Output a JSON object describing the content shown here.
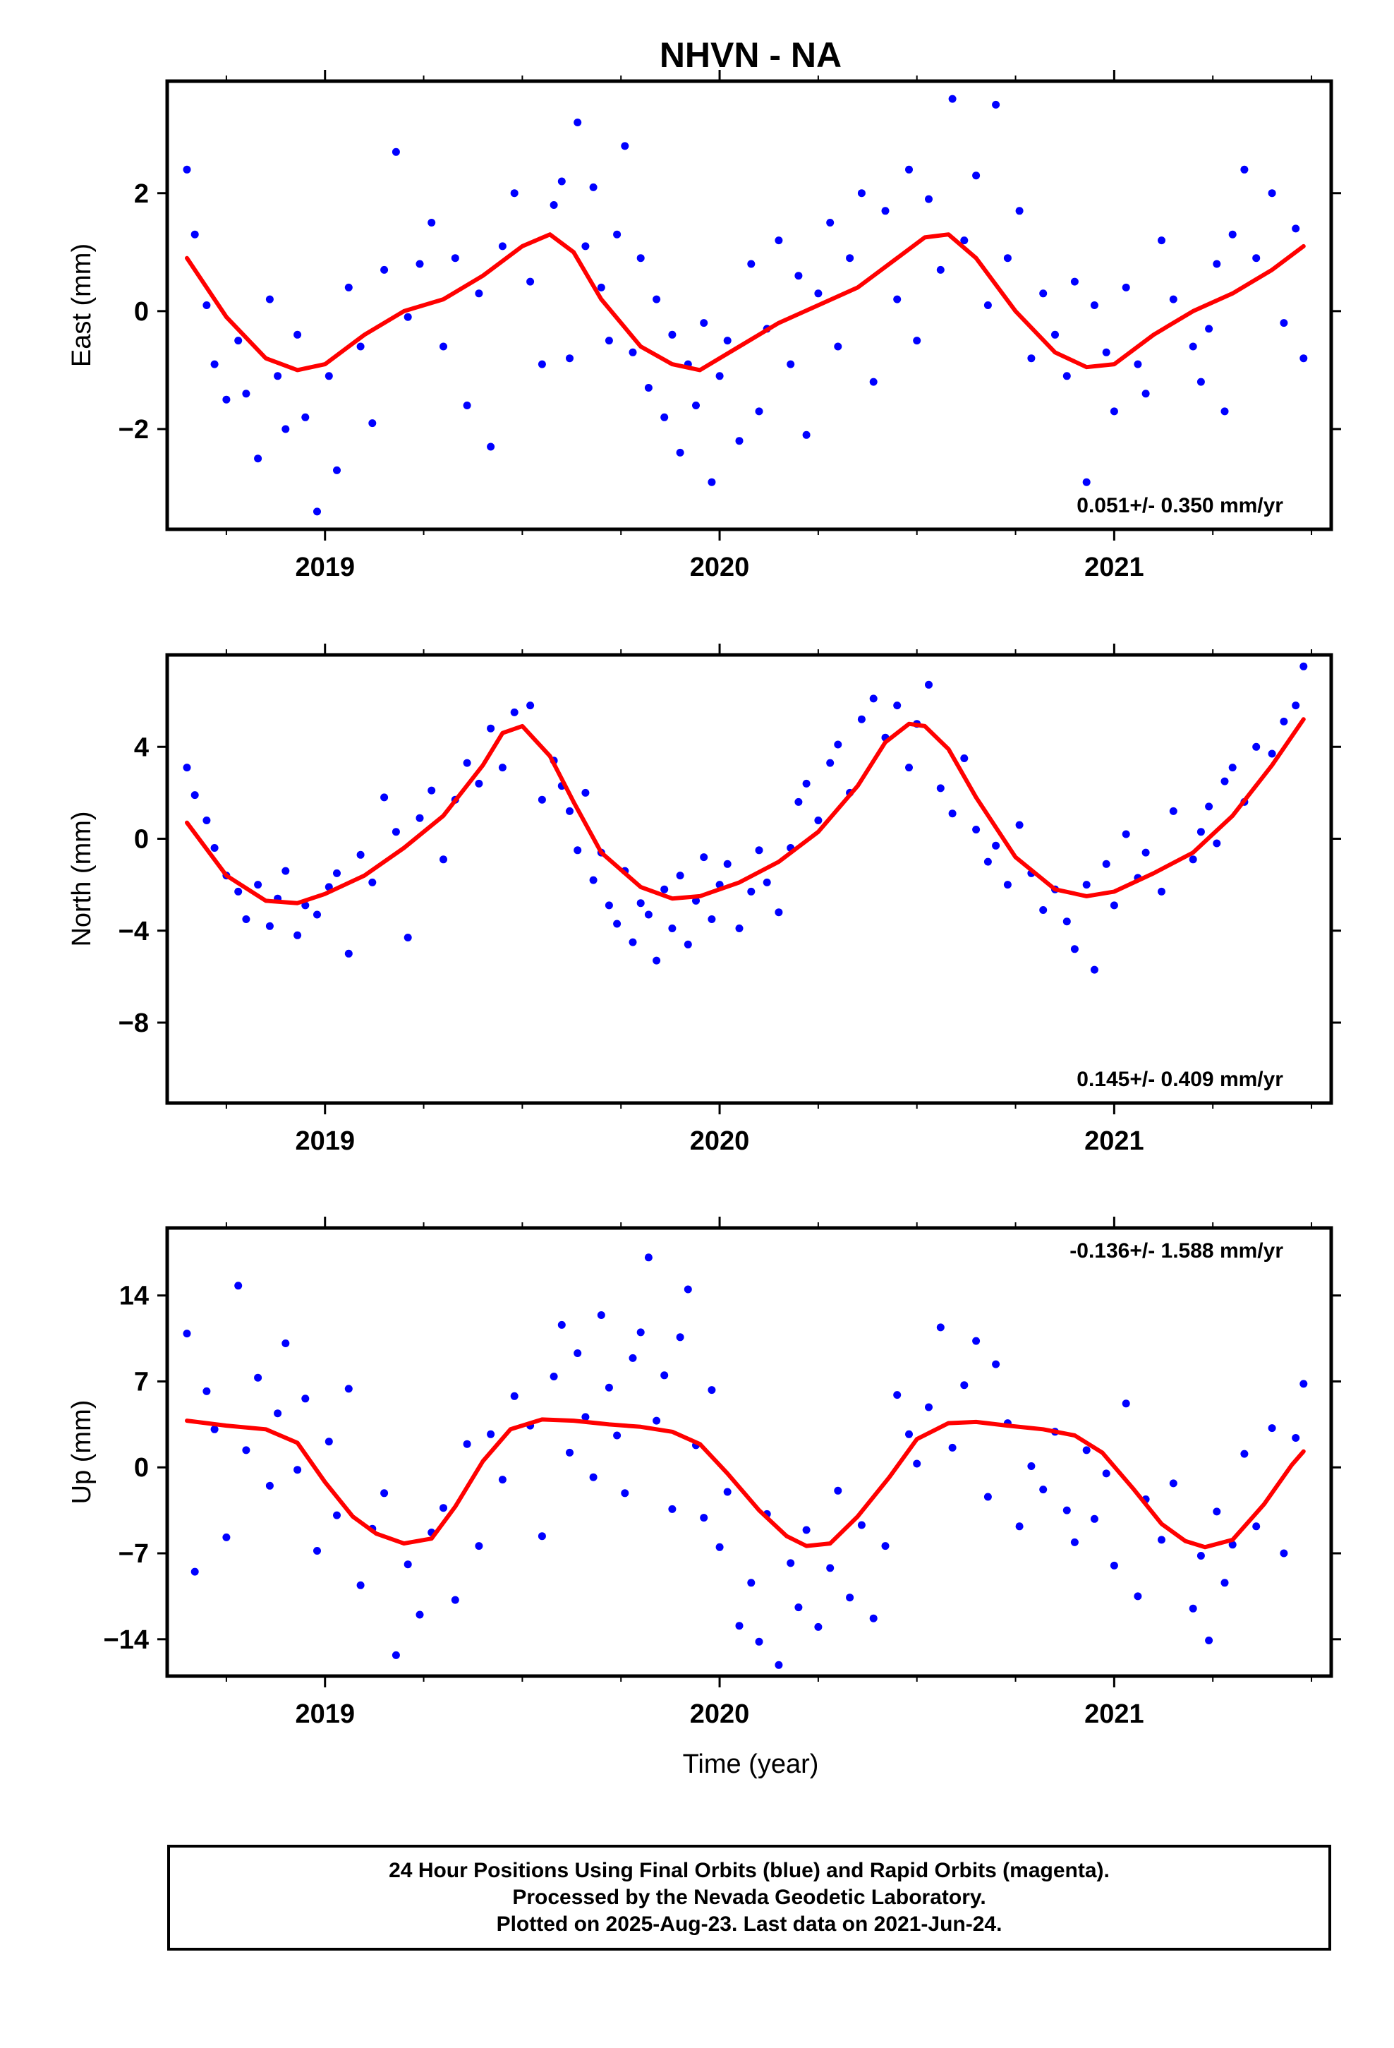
{
  "title": "NHVN - NA",
  "xlabel": "Time (year)",
  "colors": {
    "points": "#0000ff",
    "fit": "#ff0000",
    "frame": "#000000"
  },
  "footer": {
    "line1": "24 Hour Positions Using Final Orbits (blue) and Rapid Orbits (magenta).",
    "line2": "Processed by the Nevada Geodetic Laboratory.",
    "line3": "Plotted on 2025-Aug-23. Last data on 2021-Jun-24."
  },
  "chart_data": [
    {
      "type": "scatter",
      "ylabel": "East (mm)",
      "rate_label": "0.051+/- 0.350 mm/yr",
      "rate_position": "bottom-right",
      "xlim": [
        2018.6,
        2021.55
      ],
      "ylim": [
        -3.7,
        3.9
      ],
      "yticks": [
        -2,
        0,
        2
      ],
      "xticks": [
        2019,
        2020,
        2021
      ],
      "series": [
        {
          "kind": "points",
          "x": [
            2018.65,
            2018.67,
            2018.7,
            2018.72,
            2018.75,
            2018.78,
            2018.8,
            2018.83,
            2018.86,
            2018.88,
            2018.9,
            2018.93,
            2018.95,
            2018.98,
            2019.01,
            2019.03,
            2019.06,
            2019.09,
            2019.12,
            2019.15,
            2019.18,
            2019.21,
            2019.24,
            2019.27,
            2019.3,
            2019.33,
            2019.36,
            2019.39,
            2019.42,
            2019.45,
            2019.48,
            2019.52,
            2019.55,
            2019.58,
            2019.6,
            2019.62,
            2019.64,
            2019.66,
            2019.68,
            2019.7,
            2019.72,
            2019.74,
            2019.76,
            2019.78,
            2019.8,
            2019.82,
            2019.84,
            2019.86,
            2019.88,
            2019.9,
            2019.92,
            2019.94,
            2019.96,
            2019.98,
            2020.0,
            2020.02,
            2020.05,
            2020.08,
            2020.1,
            2020.12,
            2020.15,
            2020.18,
            2020.2,
            2020.22,
            2020.25,
            2020.28,
            2020.3,
            2020.33,
            2020.36,
            2020.39,
            2020.42,
            2020.45,
            2020.48,
            2020.5,
            2020.53,
            2020.56,
            2020.59,
            2020.62,
            2020.65,
            2020.68,
            2020.7,
            2020.73,
            2020.76,
            2020.79,
            2020.82,
            2020.85,
            2020.88,
            2020.9,
            2020.93,
            2020.95,
            2020.98,
            2021.0,
            2021.03,
            2021.06,
            2021.08,
            2021.12,
            2021.15,
            2021.2,
            2021.22,
            2021.24,
            2021.26,
            2021.28,
            2021.3,
            2021.33,
            2021.36,
            2021.4,
            2021.43,
            2021.46,
            2021.48
          ],
          "y": [
            2.4,
            1.3,
            0.1,
            -0.9,
            -1.5,
            -0.5,
            -1.4,
            -2.5,
            0.2,
            -1.1,
            -2.0,
            -0.4,
            -1.8,
            -3.4,
            -1.1,
            -2.7,
            0.4,
            -0.6,
            -1.9,
            0.7,
            2.7,
            -0.1,
            0.8,
            1.5,
            -0.6,
            0.9,
            -1.6,
            0.3,
            -2.3,
            1.1,
            2.0,
            0.5,
            -0.9,
            1.8,
            2.2,
            -0.8,
            3.2,
            1.1,
            2.1,
            0.4,
            -0.5,
            1.3,
            2.8,
            -0.7,
            0.9,
            -1.3,
            0.2,
            -1.8,
            -0.4,
            -2.4,
            -0.9,
            -1.6,
            -0.2,
            -2.9,
            -1.1,
            -0.5,
            -2.2,
            0.8,
            -1.7,
            -0.3,
            1.2,
            -0.9,
            0.6,
            -2.1,
            0.3,
            1.5,
            -0.6,
            0.9,
            2.0,
            -1.2,
            1.7,
            0.2,
            2.4,
            -0.5,
            1.9,
            0.7,
            3.6,
            1.2,
            2.3,
            0.1,
            3.5,
            0.9,
            1.7,
            -0.8,
            0.3,
            -0.4,
            -1.1,
            0.5,
            -2.9,
            0.1,
            -0.7,
            -1.7,
            0.4,
            -0.9,
            -1.4,
            1.2,
            0.2,
            -0.6,
            -1.2,
            -0.3,
            0.8,
            -1.7,
            1.3,
            2.4,
            0.9,
            2.0,
            -0.2,
            1.4,
            -0.8
          ]
        },
        {
          "kind": "fit",
          "x": [
            2018.65,
            2018.75,
            2018.85,
            2018.93,
            2019.0,
            2019.1,
            2019.2,
            2019.3,
            2019.4,
            2019.5,
            2019.57,
            2019.63,
            2019.7,
            2019.8,
            2019.88,
            2019.95,
            2020.05,
            2020.15,
            2020.25,
            2020.35,
            2020.45,
            2020.52,
            2020.58,
            2020.65,
            2020.75,
            2020.85,
            2020.93,
            2021.0,
            2021.1,
            2021.2,
            2021.3,
            2021.4,
            2021.48
          ],
          "y": [
            0.9,
            -0.1,
            -0.8,
            -1.0,
            -0.9,
            -0.4,
            0.0,
            0.2,
            0.6,
            1.1,
            1.3,
            1.0,
            0.2,
            -0.6,
            -0.9,
            -1.0,
            -0.6,
            -0.2,
            0.1,
            0.4,
            0.9,
            1.25,
            1.3,
            0.9,
            0.0,
            -0.7,
            -0.95,
            -0.9,
            -0.4,
            0.0,
            0.3,
            0.7,
            1.1
          ]
        }
      ]
    },
    {
      "type": "scatter",
      "ylabel": "North (mm)",
      "rate_label": "0.145+/- 0.409 mm/yr",
      "rate_position": "bottom-right",
      "xlim": [
        2018.6,
        2021.55
      ],
      "ylim": [
        -11.5,
        8.0
      ],
      "yticks": [
        -8,
        -4,
        0,
        4
      ],
      "xticks": [
        2019,
        2020,
        2021
      ],
      "series": [
        {
          "kind": "points",
          "x": [
            2018.65,
            2018.67,
            2018.7,
            2018.72,
            2018.75,
            2018.78,
            2018.8,
            2018.83,
            2018.86,
            2018.88,
            2018.9,
            2018.93,
            2018.95,
            2018.98,
            2019.01,
            2019.03,
            2019.06,
            2019.09,
            2019.12,
            2019.15,
            2019.18,
            2019.21,
            2019.24,
            2019.27,
            2019.3,
            2019.33,
            2019.36,
            2019.39,
            2019.42,
            2019.45,
            2019.48,
            2019.52,
            2019.55,
            2019.58,
            2019.6,
            2019.62,
            2019.64,
            2019.66,
            2019.68,
            2019.7,
            2019.72,
            2019.74,
            2019.76,
            2019.78,
            2019.8,
            2019.82,
            2019.84,
            2019.86,
            2019.88,
            2019.9,
            2019.92,
            2019.94,
            2019.96,
            2019.98,
            2020.0,
            2020.02,
            2020.05,
            2020.08,
            2020.1,
            2020.12,
            2020.15,
            2020.18,
            2020.2,
            2020.22,
            2020.25,
            2020.28,
            2020.3,
            2020.33,
            2020.36,
            2020.39,
            2020.42,
            2020.45,
            2020.48,
            2020.5,
            2020.53,
            2020.56,
            2020.59,
            2020.62,
            2020.65,
            2020.68,
            2020.7,
            2020.73,
            2020.76,
            2020.79,
            2020.82,
            2020.85,
            2020.88,
            2020.9,
            2020.93,
            2020.95,
            2020.98,
            2021.0,
            2021.03,
            2021.06,
            2021.08,
            2021.12,
            2021.15,
            2021.2,
            2021.22,
            2021.24,
            2021.26,
            2021.28,
            2021.3,
            2021.33,
            2021.36,
            2021.4,
            2021.43,
            2021.46,
            2021.48
          ],
          "y": [
            3.1,
            1.9,
            0.8,
            -0.4,
            -1.6,
            -2.3,
            -3.5,
            -2.0,
            -3.8,
            -2.6,
            -1.4,
            -4.2,
            -2.9,
            -3.3,
            -2.1,
            -1.5,
            -5.0,
            -0.7,
            -1.9,
            1.8,
            0.3,
            -4.3,
            0.9,
            2.1,
            -0.9,
            1.7,
            3.3,
            2.4,
            4.8,
            3.1,
            5.5,
            5.8,
            1.7,
            3.4,
            2.3,
            1.2,
            -0.5,
            2.0,
            -1.8,
            -0.6,
            -2.9,
            -3.7,
            -1.4,
            -4.5,
            -2.8,
            -3.3,
            -5.3,
            -2.2,
            -3.9,
            -1.6,
            -4.6,
            -2.7,
            -0.8,
            -3.5,
            -2.0,
            -1.1,
            -3.9,
            -2.3,
            -0.5,
            -1.9,
            -3.2,
            -0.4,
            1.6,
            2.4,
            0.8,
            3.3,
            4.1,
            2.0,
            5.2,
            6.1,
            4.4,
            5.8,
            3.1,
            5.0,
            6.7,
            2.2,
            1.1,
            3.5,
            0.4,
            -1.0,
            -0.3,
            -2.0,
            0.6,
            -1.5,
            -3.1,
            -2.2,
            -3.6,
            -4.8,
            -2.0,
            -5.7,
            -1.1,
            -2.9,
            0.2,
            -1.7,
            -0.6,
            -2.3,
            1.2,
            -0.9,
            0.3,
            1.4,
            -0.2,
            2.5,
            3.1,
            1.6,
            4.0,
            3.7,
            5.1,
            5.8,
            7.5
          ]
        },
        {
          "kind": "fit",
          "x": [
            2018.65,
            2018.75,
            2018.85,
            2018.93,
            2019.0,
            2019.1,
            2019.2,
            2019.3,
            2019.4,
            2019.45,
            2019.5,
            2019.57,
            2019.63,
            2019.7,
            2019.8,
            2019.88,
            2019.95,
            2020.05,
            2020.15,
            2020.25,
            2020.35,
            2020.42,
            2020.48,
            2020.52,
            2020.58,
            2020.65,
            2020.75,
            2020.85,
            2020.93,
            2021.0,
            2021.1,
            2021.2,
            2021.3,
            2021.4,
            2021.48
          ],
          "y": [
            0.7,
            -1.6,
            -2.7,
            -2.8,
            -2.4,
            -1.6,
            -0.4,
            1.0,
            3.2,
            4.6,
            4.9,
            3.6,
            1.6,
            -0.6,
            -2.1,
            -2.6,
            -2.5,
            -1.9,
            -1.0,
            0.3,
            2.3,
            4.2,
            5.0,
            4.9,
            3.9,
            1.8,
            -0.8,
            -2.2,
            -2.5,
            -2.3,
            -1.5,
            -0.6,
            1.0,
            3.2,
            5.2
          ]
        }
      ]
    },
    {
      "type": "scatter",
      "ylabel": "Up (mm)",
      "rate_label": "-0.136+/- 1.588 mm/yr",
      "rate_position": "top-right",
      "xlim": [
        2018.6,
        2021.55
      ],
      "ylim": [
        -17.0,
        19.5
      ],
      "yticks": [
        -14,
        -7,
        0,
        7,
        14
      ],
      "xticks": [
        2019,
        2020,
        2021
      ],
      "series": [
        {
          "kind": "points",
          "x": [
            2018.65,
            2018.67,
            2018.7,
            2018.72,
            2018.75,
            2018.78,
            2018.8,
            2018.83,
            2018.86,
            2018.88,
            2018.9,
            2018.93,
            2018.95,
            2018.98,
            2019.01,
            2019.03,
            2019.06,
            2019.09,
            2019.12,
            2019.15,
            2019.18,
            2019.21,
            2019.24,
            2019.27,
            2019.3,
            2019.33,
            2019.36,
            2019.39,
            2019.42,
            2019.45,
            2019.48,
            2019.52,
            2019.55,
            2019.58,
            2019.6,
            2019.62,
            2019.64,
            2019.66,
            2019.68,
            2019.7,
            2019.72,
            2019.74,
            2019.76,
            2019.78,
            2019.8,
            2019.82,
            2019.84,
            2019.86,
            2019.88,
            2019.9,
            2019.92,
            2019.94,
            2019.96,
            2019.98,
            2020.0,
            2020.02,
            2020.05,
            2020.08,
            2020.1,
            2020.12,
            2020.15,
            2020.18,
            2020.2,
            2020.22,
            2020.25,
            2020.28,
            2020.3,
            2020.33,
            2020.36,
            2020.39,
            2020.42,
            2020.45,
            2020.48,
            2020.5,
            2020.53,
            2020.56,
            2020.59,
            2020.62,
            2020.65,
            2020.68,
            2020.7,
            2020.73,
            2020.76,
            2020.79,
            2020.82,
            2020.85,
            2020.88,
            2020.9,
            2020.93,
            2020.95,
            2020.98,
            2021.0,
            2021.03,
            2021.06,
            2021.08,
            2021.12,
            2021.15,
            2021.2,
            2021.22,
            2021.24,
            2021.26,
            2021.28,
            2021.3,
            2021.33,
            2021.36,
            2021.4,
            2021.43,
            2021.46,
            2021.48
          ],
          "y": [
            10.9,
            -8.5,
            6.2,
            3.1,
            -5.7,
            14.8,
            1.4,
            7.3,
            -1.5,
            4.4,
            10.1,
            -0.2,
            5.6,
            -6.8,
            2.1,
            -3.9,
            6.4,
            -9.6,
            -5.0,
            -2.1,
            -15.3,
            -7.9,
            -12.0,
            -5.3,
            -3.3,
            -10.8,
            1.9,
            -6.4,
            2.7,
            -1.0,
            5.8,
            3.4,
            -5.6,
            7.4,
            11.6,
            1.2,
            9.3,
            4.1,
            -0.8,
            12.4,
            6.5,
            2.6,
            -2.1,
            8.9,
            11.0,
            17.1,
            3.8,
            7.5,
            -3.4,
            10.6,
            14.5,
            1.8,
            -4.1,
            6.3,
            -6.5,
            -2.0,
            -12.9,
            -9.4,
            -14.2,
            -3.8,
            -16.1,
            -7.8,
            -11.4,
            -5.1,
            -13.0,
            -8.2,
            -1.9,
            -10.6,
            -4.7,
            -12.3,
            -6.4,
            5.9,
            2.7,
            0.3,
            4.9,
            11.4,
            1.6,
            6.7,
            10.3,
            -2.4,
            8.4,
            3.6,
            -4.8,
            0.1,
            -1.8,
            2.9,
            -3.5,
            -6.1,
            1.4,
            -4.2,
            -0.5,
            -8.0,
            5.2,
            -10.5,
            -2.6,
            -5.9,
            -1.3,
            -11.5,
            -7.2,
            -14.1,
            -3.6,
            -9.4,
            -6.3,
            1.1,
            -4.8,
            3.2,
            -7.0,
            2.4,
            6.8
          ]
        },
        {
          "kind": "fit",
          "x": [
            2018.65,
            2018.75,
            2018.85,
            2018.93,
            2019.0,
            2019.07,
            2019.13,
            2019.2,
            2019.27,
            2019.33,
            2019.4,
            2019.47,
            2019.55,
            2019.63,
            2019.72,
            2019.8,
            2019.88,
            2019.95,
            2020.02,
            2020.1,
            2020.17,
            2020.22,
            2020.28,
            2020.35,
            2020.43,
            2020.5,
            2020.58,
            2020.65,
            2020.73,
            2020.82,
            2020.9,
            2020.97,
            2021.05,
            2021.12,
            2021.18,
            2021.23,
            2021.3,
            2021.38,
            2021.45,
            2021.48
          ],
          "y": [
            3.8,
            3.4,
            3.1,
            2.0,
            -1.2,
            -4.0,
            -5.4,
            -6.2,
            -5.8,
            -3.2,
            0.5,
            3.1,
            3.9,
            3.8,
            3.5,
            3.3,
            2.9,
            1.9,
            -0.5,
            -3.5,
            -5.6,
            -6.4,
            -6.2,
            -4.0,
            -0.8,
            2.3,
            3.6,
            3.7,
            3.4,
            3.1,
            2.6,
            1.2,
            -1.8,
            -4.6,
            -6.0,
            -6.5,
            -5.9,
            -3.0,
            0.2,
            1.3
          ]
        }
      ]
    }
  ]
}
